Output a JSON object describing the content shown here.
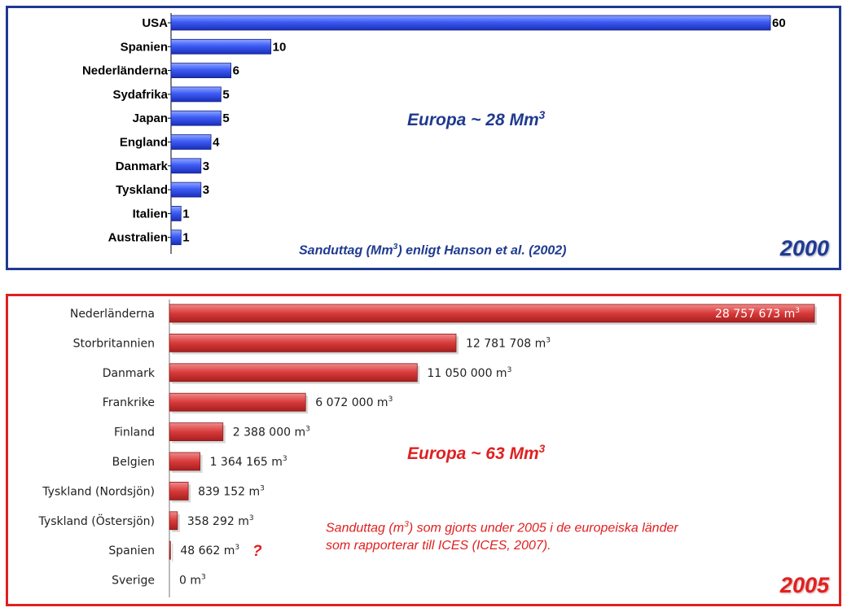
{
  "chart_data": [
    {
      "type": "bar",
      "orientation": "horizontal",
      "categories": [
        "USA",
        "Spanien",
        "Nederländerna",
        "Sydafrika",
        "Japan",
        "England",
        "Danmark",
        "Tyskland",
        "Italien",
        "Australien"
      ],
      "values": [
        60,
        10,
        6,
        5,
        5,
        4,
        3,
        3,
        1,
        1
      ],
      "value_labels": [
        "60",
        "10",
        "6",
        "5",
        "5",
        "4",
        "3",
        "3",
        "1",
        "1"
      ],
      "xlim": [
        0,
        60
      ],
      "grid": false,
      "bar_color": "#3b5cf0",
      "border_color": "#1f3a8f",
      "annotation": {
        "prefix": "Europa ~ 28 Mm",
        "sup": "3"
      },
      "source": {
        "prefix": "Sanduttag  (Mm",
        "sup": "3",
        "suffix": ") enligt Hanson  et al. (2002)"
      },
      "year": "2000"
    },
    {
      "type": "bar",
      "orientation": "horizontal",
      "categories": [
        "Nederländerna",
        "Storbritannien",
        "Danmark",
        "Frankrike",
        "Finland",
        "Belgien",
        "Tyskland (Nordsjön)",
        "Tyskland (Östersjön)",
        "Spanien",
        "Sverige"
      ],
      "values": [
        28757673,
        12781708,
        11050000,
        6072000,
        2388000,
        1364165,
        839152,
        358292,
        48662,
        0
      ],
      "value_labels": [
        "28 757 673 m",
        "12 781 708 m",
        "11 050 000 m",
        "6 072 000 m",
        "2 388 000 m",
        "1 364 165 m",
        "839 152 m",
        "358 292 m",
        "48 662 m",
        "0 m"
      ],
      "unit_sup": "3",
      "xlim": [
        0,
        28757673
      ],
      "grid": false,
      "bar_color": "#d84040",
      "border_color": "#e02020",
      "annotation": {
        "prefix": "Europa ~ 63 Mm",
        "sup": "3"
      },
      "source": {
        "line1_prefix": "Sanduttag  (m",
        "sup": "3",
        "line1_suffix": ") som gjorts under 2005 i de europeiska länder",
        "line2": "som rapporterar till ICES  (ICES, 2007)."
      },
      "question_mark": "?",
      "year": "2005"
    }
  ]
}
